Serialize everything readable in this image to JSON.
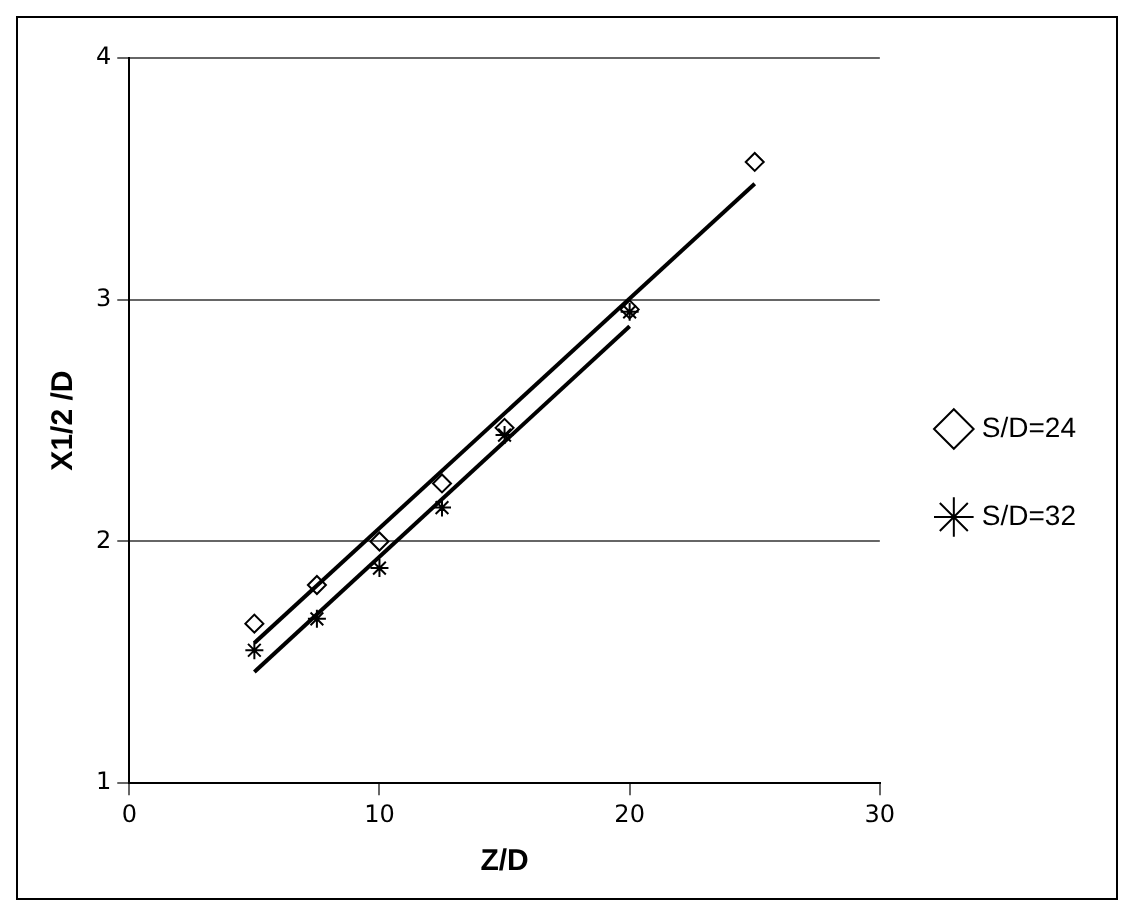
{
  "chart_data": {
    "type": "scatter",
    "xlabel": "Z/D",
    "ylabel": "X1/2 /D",
    "xlim": [
      0,
      30
    ],
    "xticks": [
      0,
      10,
      20,
      30
    ],
    "ylim": [
      1,
      4
    ],
    "yticks": [
      1,
      2,
      3,
      4
    ],
    "grid": "y",
    "legend": "right",
    "series": [
      {
        "name": "S/D=24",
        "color": "#000000",
        "marker": "diamond",
        "x": [
          5,
          7.5,
          10,
          12.5,
          15,
          20,
          25
        ],
        "values": [
          1.66,
          1.82,
          2.0,
          2.24,
          2.47,
          2.96,
          3.57
        ]
      },
      {
        "name": "S/D=32",
        "color": "#000000",
        "marker": "cross",
        "x": [
          5,
          7.5,
          10,
          12.5,
          15,
          20
        ],
        "values": [
          1.55,
          1.68,
          1.89,
          2.14,
          2.44,
          2.95
        ]
      },
      {
        "type": "line",
        "color": "#000000",
        "x": [
          5,
          25
        ],
        "values": [
          1.58,
          3.48
        ]
      },
      {
        "type": "line",
        "color": "#000000",
        "x": [
          5,
          20
        ],
        "values": [
          1.46,
          2.89
        ]
      }
    ]
  }
}
